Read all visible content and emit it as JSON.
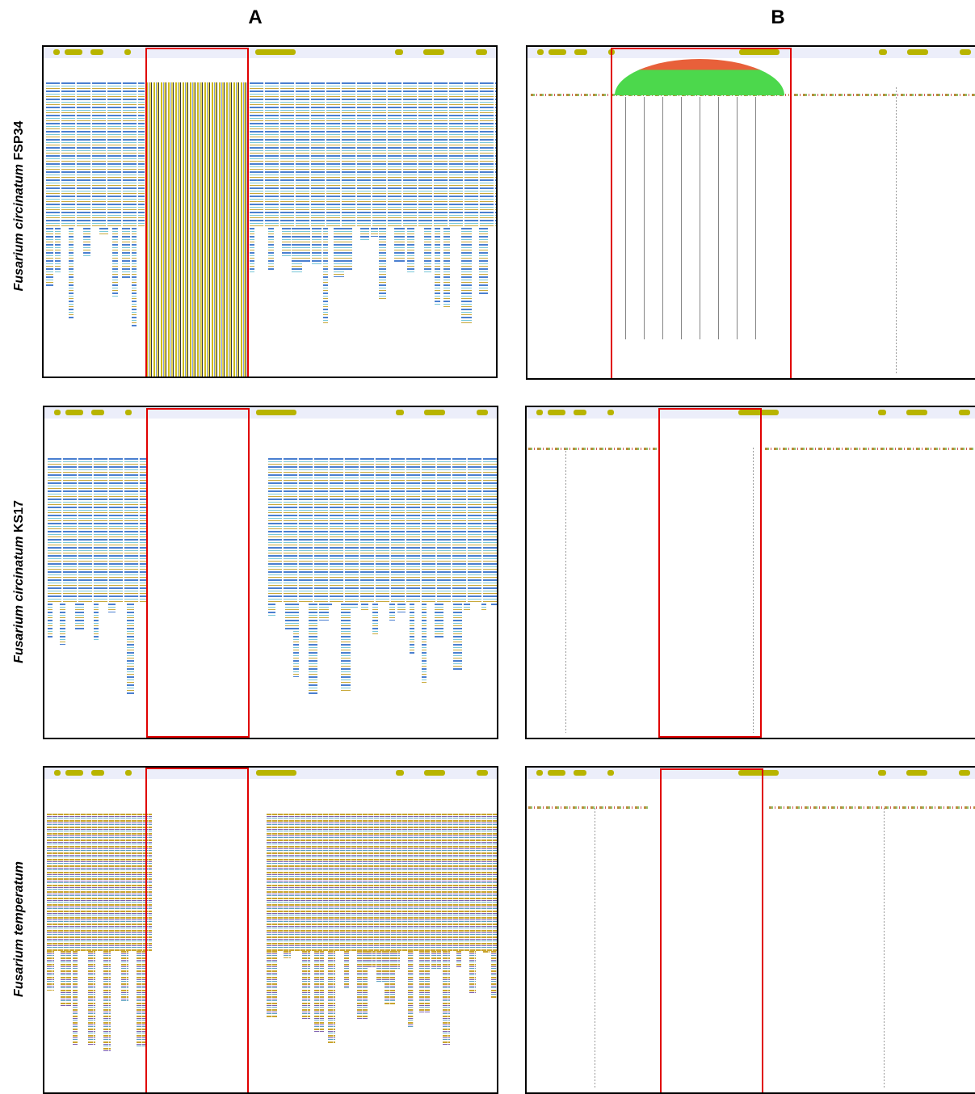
{
  "columns": {
    "left": "A",
    "right": "B"
  },
  "rows": [
    {
      "species": "Fusarium circinatum",
      "strain": "FSP34"
    },
    {
      "species": "Fusarium circinatum",
      "strain": "KS17"
    },
    {
      "species": "Fusarium temperatum"
    }
  ]
}
